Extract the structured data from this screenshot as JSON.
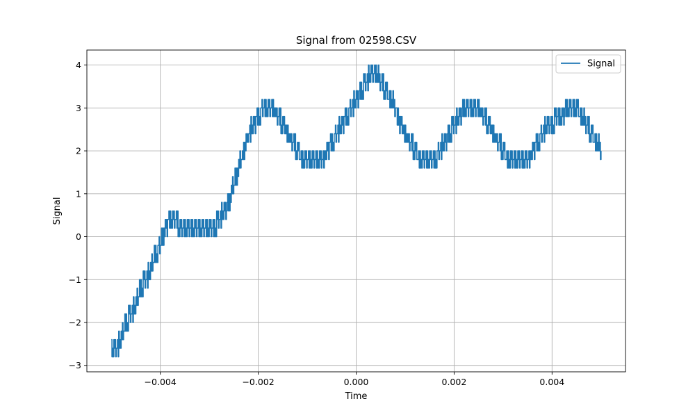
{
  "chart_data": {
    "type": "line",
    "title": "Signal from 02598.CSV",
    "xlabel": "Time",
    "ylabel": "Signal",
    "xlim": [
      -0.0055,
      0.0055
    ],
    "ylim": [
      -3.15,
      4.35
    ],
    "x_ticks": [
      {
        "value": -0.004,
        "label": "−0.004"
      },
      {
        "value": -0.002,
        "label": "−0.002"
      },
      {
        "value": 0.0,
        "label": "0.000"
      },
      {
        "value": 0.002,
        "label": "0.002"
      },
      {
        "value": 0.004,
        "label": "0.004"
      }
    ],
    "y_ticks": [
      {
        "value": -3,
        "label": "−3"
      },
      {
        "value": -2,
        "label": "−2"
      },
      {
        "value": -1,
        "label": "−1"
      },
      {
        "value": 0,
        "label": "0"
      },
      {
        "value": 1,
        "label": "1"
      },
      {
        "value": 2,
        "label": "2"
      },
      {
        "value": 3,
        "label": "3"
      },
      {
        "value": 4,
        "label": "4"
      }
    ],
    "grid": true,
    "legend": {
      "position": "upper-right",
      "entries": [
        "Signal"
      ]
    },
    "series": [
      {
        "name": "Signal",
        "color": "#1f77b4",
        "x": [
          -0.005,
          -0.0049,
          -0.0048,
          -0.0047,
          -0.0046,
          -0.0045,
          -0.0044,
          -0.0043,
          -0.0042,
          -0.0041,
          -0.004,
          -0.0039,
          -0.0038,
          -0.0037,
          -0.0036,
          -0.0035,
          -0.0034,
          -0.0033,
          -0.0032,
          -0.0031,
          -0.003,
          -0.0029,
          -0.0028,
          -0.0027,
          -0.0026,
          -0.0025,
          -0.0024,
          -0.0023,
          -0.0022,
          -0.0021,
          -0.002,
          -0.0019,
          -0.0018,
          -0.0017,
          -0.0016,
          -0.0015,
          -0.0014,
          -0.0013,
          -0.0012,
          -0.0011,
          -0.001,
          -0.0009,
          -0.0008,
          -0.0007,
          -0.0006,
          -0.0005,
          -0.0004,
          -0.0003,
          -0.0002,
          -0.0001,
          0.0,
          0.0001,
          0.0002,
          0.0003,
          0.0004,
          0.0005,
          0.0006,
          0.0007,
          0.0008,
          0.0009,
          0.001,
          0.0011,
          0.0012,
          0.0013,
          0.0014,
          0.0015,
          0.0016,
          0.0017,
          0.0018,
          0.0019,
          0.002,
          0.0021,
          0.0022,
          0.0023,
          0.0024,
          0.0025,
          0.0026,
          0.0027,
          0.0028,
          0.0029,
          0.003,
          0.0031,
          0.0032,
          0.0033,
          0.0034,
          0.0035,
          0.0036,
          0.0037,
          0.0038,
          0.0039,
          0.004,
          0.0041,
          0.0042,
          0.0043,
          0.0044,
          0.0045,
          0.0046,
          0.0047,
          0.0048,
          0.0049,
          0.005
        ],
        "y": [
          -2.6,
          -2.6,
          -2.4,
          -2.0,
          -1.8,
          -1.6,
          -1.2,
          -1.0,
          -0.8,
          -0.4,
          -0.2,
          0.2,
          0.4,
          0.4,
          0.2,
          0.2,
          0.2,
          0.2,
          0.2,
          0.2,
          0.2,
          0.2,
          0.4,
          0.6,
          0.8,
          1.2,
          1.6,
          2.0,
          2.4,
          2.6,
          2.8,
          3.0,
          3.0,
          3.0,
          2.8,
          2.6,
          2.4,
          2.2,
          2.0,
          1.8,
          1.8,
          1.8,
          1.8,
          1.8,
          2.0,
          2.2,
          2.4,
          2.6,
          2.8,
          3.0,
          3.2,
          3.4,
          3.6,
          3.8,
          3.8,
          3.6,
          3.4,
          3.2,
          3.0,
          2.6,
          2.4,
          2.2,
          2.0,
          1.8,
          1.8,
          1.8,
          1.8,
          2.0,
          2.2,
          2.4,
          2.6,
          2.8,
          3.0,
          3.0,
          3.0,
          3.0,
          2.8,
          2.6,
          2.4,
          2.2,
          2.0,
          1.8,
          1.8,
          1.8,
          1.8,
          1.8,
          2.0,
          2.2,
          2.4,
          2.6,
          2.6,
          2.8,
          2.8,
          3.0,
          3.0,
          3.0,
          2.8,
          2.6,
          2.4,
          2.2,
          2.0
        ]
      }
    ]
  }
}
